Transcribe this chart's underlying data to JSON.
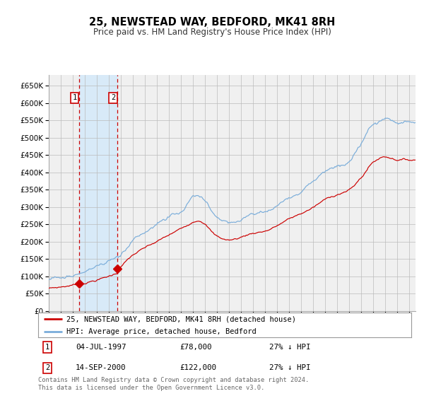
{
  "title": "25, NEWSTEAD WAY, BEDFORD, MK41 8RH",
  "subtitle": "Price paid vs. HM Land Registry's House Price Index (HPI)",
  "sale1_date": "04-JUL-1997",
  "sale1_price": 78000,
  "sale1_label": "27% ↓ HPI",
  "sale1_year": 1997.503,
  "sale2_date": "14-SEP-2000",
  "sale2_price": 122000,
  "sale2_label": "27% ↓ HPI",
  "sale2_year": 2000.703,
  "legend_line1": "25, NEWSTEAD WAY, BEDFORD, MK41 8RH (detached house)",
  "legend_line2": "HPI: Average price, detached house, Bedford",
  "footer": "Contains HM Land Registry data © Crown copyright and database right 2024.\nThis data is licensed under the Open Government Licence v3.0.",
  "red_color": "#cc0000",
  "blue_color": "#7aadda",
  "grid_color": "#bbbbbb",
  "bg_color": "#ffffff",
  "plot_bg_color": "#f0f0f0",
  "highlight_bg": "#d8eaf8",
  "ylim": [
    0,
    680000
  ],
  "yticks": [
    0,
    50000,
    100000,
    150000,
    200000,
    250000,
    300000,
    350000,
    400000,
    450000,
    500000,
    550000,
    600000,
    650000
  ],
  "xstart": 1995.0,
  "xend": 2025.5
}
